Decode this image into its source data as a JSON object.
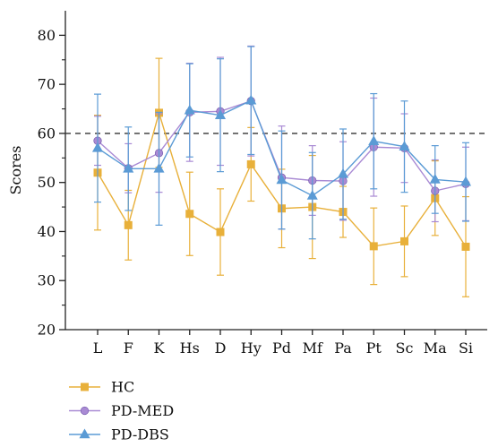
{
  "chart_data": {
    "type": "line",
    "ylabel": "Scores",
    "xlabel": "",
    "ylim": [
      20,
      85
    ],
    "yticks": [
      20,
      30,
      40,
      50,
      60,
      70,
      80
    ],
    "categories": [
      "L",
      "F",
      "K",
      "Hs",
      "D",
      "Hy",
      "Pd",
      "Mf",
      "Pa",
      "Pt",
      "Sc",
      "Ma",
      "Si"
    ],
    "reference_line": {
      "y": 60,
      "style": "dashed",
      "color": "#333333"
    },
    "legend_placement": "bottom-left",
    "grid": false,
    "series": [
      {
        "name": "HC",
        "color": "#E8B03A",
        "marker": "square",
        "values": [
          52,
          41.3,
          64.2,
          43.6,
          39.9,
          53.7,
          44.7,
          45,
          44,
          37,
          38,
          46.8,
          36.9
        ],
        "error": [
          11.7,
          7.1,
          11.1,
          8.5,
          8.8,
          7.5,
          8,
          10.5,
          5.2,
          7.8,
          7.2,
          7.6,
          10.2
        ]
      },
      {
        "name": "PD-MED",
        "color": "#A98AD4",
        "marker": "circle",
        "values": [
          58.5,
          52.9,
          56,
          64.3,
          64.5,
          66.6,
          51,
          50.4,
          50.3,
          57.2,
          57,
          48.3,
          49.7
        ],
        "error": [
          5,
          5,
          8,
          10,
          11,
          11.2,
          10.5,
          7.1,
          8,
          10,
          7,
          6.3,
          7.5
        ]
      },
      {
        "name": "PD-DBS",
        "color": "#5B9BD5",
        "marker": "triangle",
        "values": [
          57,
          52.8,
          52.8,
          64.7,
          63.7,
          66.7,
          50.5,
          47.3,
          51.7,
          58.4,
          57.3,
          50.6,
          50.1
        ],
        "error": [
          11,
          8.5,
          11.5,
          9.5,
          11.5,
          11,
          10,
          8.8,
          9.2,
          9.7,
          9.3,
          6.9,
          8
        ]
      }
    ]
  }
}
